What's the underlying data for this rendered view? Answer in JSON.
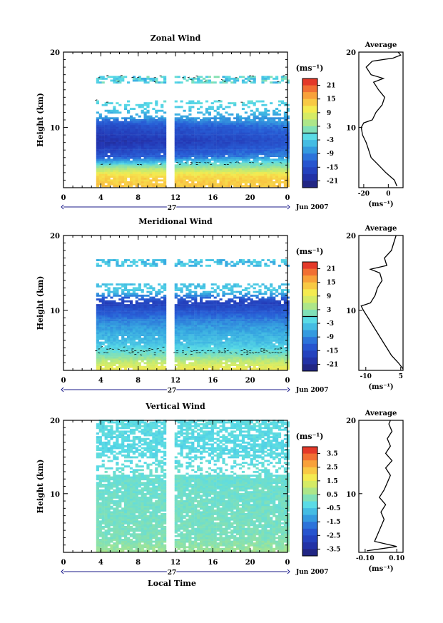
{
  "figure": {
    "date_label": "Jun 2007",
    "day_label": "27",
    "bottom_xlabel": "Local Time",
    "colorbar_unit": "(ms⁻¹)",
    "avg_unit": "(ms⁻¹)"
  },
  "chart_data": [
    {
      "type": "heatmap",
      "title": "Zonal Wind",
      "ylabel": "Height (km)",
      "x_ticks": [
        "0",
        "4",
        "8",
        "12",
        "16",
        "20",
        "0"
      ],
      "xlim": [
        0,
        24
      ],
      "y_ticks": [
        "10",
        "20"
      ],
      "ylim": [
        2,
        20
      ],
      "colorbar": {
        "ticks": [
          "21",
          "15",
          "9",
          "3",
          "-3",
          "-9",
          "-15",
          "-21"
        ],
        "values": [
          21,
          15,
          9,
          3,
          -3,
          -9,
          -15,
          -21
        ],
        "range": [
          -24,
          24
        ],
        "contour_at": 0
      },
      "data_time_range": [
        3.5,
        24
      ],
      "gap_hours": [
        11.0,
        11.7
      ],
      "height_profile": [
        {
          "h": 2,
          "v": 14
        },
        {
          "h": 3.5,
          "v": 12
        },
        {
          "h": 5,
          "v": 0
        },
        {
          "h": 6,
          "v": -11
        },
        {
          "h": 8,
          "v": -17
        },
        {
          "h": 10,
          "v": -13
        },
        {
          "h": 11,
          "v": -8
        },
        {
          "h": 12.5,
          "v": -3
        },
        {
          "h": 13.5,
          "v": -1
        },
        {
          "h": 17,
          "v": -6
        }
      ],
      "average": {
        "title": "Average",
        "x_ticks": [
          "-20",
          "0"
        ],
        "x_tick_values": [
          -20,
          0
        ],
        "xlim": [
          -24,
          12
        ],
        "ylim": [
          2,
          20
        ],
        "y_ticks": [
          "10",
          "20"
        ],
        "profile": [
          {
            "h": 2.2,
            "v": 7
          },
          {
            "h": 3,
            "v": 5
          },
          {
            "h": 4,
            "v": -2
          },
          {
            "h": 5,
            "v": -8
          },
          {
            "h": 6,
            "v": -14
          },
          {
            "h": 7,
            "v": -16
          },
          {
            "h": 8,
            "v": -18
          },
          {
            "h": 9,
            "v": -21
          },
          {
            "h": 10,
            "v": -22
          },
          {
            "h": 10.6,
            "v": -20
          },
          {
            "h": 11,
            "v": -13
          },
          {
            "h": 12,
            "v": -10
          },
          {
            "h": 13,
            "v": -5
          },
          {
            "h": 14,
            "v": -3
          },
          {
            "h": 15,
            "v": -8
          },
          {
            "h": 16,
            "v": -12
          },
          {
            "h": 16.5,
            "v": -4
          },
          {
            "h": 17,
            "v": -14
          },
          {
            "h": 18,
            "v": -18
          },
          {
            "h": 18.8,
            "v": -13
          },
          {
            "h": 19.2,
            "v": 4
          },
          {
            "h": 19.6,
            "v": 10
          },
          {
            "h": 20,
            "v": 8
          }
        ]
      }
    },
    {
      "type": "heatmap",
      "title": "Meridional Wind",
      "ylabel": "Height (km)",
      "x_ticks": [
        "0",
        "4",
        "8",
        "12",
        "16",
        "20",
        "0"
      ],
      "xlim": [
        0,
        24
      ],
      "y_ticks": [
        "10",
        "20"
      ],
      "ylim": [
        2,
        20
      ],
      "colorbar": {
        "ticks": [
          "21",
          "15",
          "9",
          "3",
          "-3",
          "-9",
          "-15",
          "-21"
        ],
        "values": [
          21,
          15,
          9,
          3,
          -3,
          -9,
          -15,
          -21
        ],
        "range": [
          -24,
          24
        ],
        "contour_at": 0
      },
      "data_time_range": [
        3.5,
        24
      ],
      "gap_hours": [
        11.0,
        11.7
      ],
      "height_profile": [
        {
          "h": 2,
          "v": 10
        },
        {
          "h": 3,
          "v": 6
        },
        {
          "h": 4,
          "v": 1
        },
        {
          "h": 5.5,
          "v": -4
        },
        {
          "h": 7,
          "v": -6
        },
        {
          "h": 8.5,
          "v": -9
        },
        {
          "h": 10,
          "v": -14
        },
        {
          "h": 11,
          "v": -17
        },
        {
          "h": 12.5,
          "v": -3
        },
        {
          "h": 16,
          "v": -7
        },
        {
          "h": 17,
          "v": -7
        }
      ],
      "average": {
        "title": "Average",
        "x_ticks": [
          "-10",
          "5"
        ],
        "x_tick_values": [
          -10,
          5
        ],
        "xlim": [
          -13,
          6
        ],
        "ylim": [
          2,
          20
        ],
        "y_ticks": [
          "10",
          "20"
        ],
        "profile": [
          {
            "h": 2.2,
            "v": 6
          },
          {
            "h": 3,
            "v": 4
          },
          {
            "h": 4,
            "v": 1
          },
          {
            "h": 5,
            "v": -1
          },
          {
            "h": 6,
            "v": -3
          },
          {
            "h": 7,
            "v": -5
          },
          {
            "h": 8,
            "v": -7
          },
          {
            "h": 9,
            "v": -9
          },
          {
            "h": 10,
            "v": -11
          },
          {
            "h": 10.6,
            "v": -12
          },
          {
            "h": 11,
            "v": -8
          },
          {
            "h": 12,
            "v": -6
          },
          {
            "h": 13,
            "v": -5
          },
          {
            "h": 14,
            "v": -3
          },
          {
            "h": 15,
            "v": -4
          },
          {
            "h": 15.5,
            "v": -8
          },
          {
            "h": 16,
            "v": -1
          },
          {
            "h": 17,
            "v": -2
          },
          {
            "h": 18,
            "v": 1
          },
          {
            "h": 19,
            "v": 2
          },
          {
            "h": 20,
            "v": 3
          }
        ]
      }
    },
    {
      "type": "heatmap",
      "title": "Vertical Wind",
      "ylabel": "Height (km)",
      "xlabel": "Local Time",
      "x_ticks": [
        "0",
        "4",
        "8",
        "12",
        "16",
        "20",
        "0"
      ],
      "xlim": [
        0,
        24
      ],
      "y_ticks": [
        "10",
        "20"
      ],
      "ylim": [
        2,
        20
      ],
      "colorbar": {
        "ticks": [
          "3.5",
          "2.5",
          "1.5",
          "0.5",
          "-0.5",
          "-1.5",
          "-2.5",
          "-3.5"
        ],
        "values": [
          3.5,
          2.5,
          1.5,
          0.5,
          -0.5,
          -1.5,
          -2.5,
          -3.5
        ],
        "range": [
          -4,
          4
        ],
        "contour_at": null
      },
      "data_time_range": [
        3.5,
        24
      ],
      "gap_hours": [
        11.0,
        11.7
      ],
      "height_profile": [
        {
          "h": 2,
          "v": 0.6
        },
        {
          "h": 4,
          "v": 0.2
        },
        {
          "h": 8,
          "v": 0.1
        },
        {
          "h": 12,
          "v": 0.0
        },
        {
          "h": 16,
          "v": -0.3
        },
        {
          "h": 20,
          "v": -0.2
        }
      ],
      "average": {
        "title": "Average",
        "x_ticks": [
          "-0.10",
          "0.10"
        ],
        "x_tick_values": [
          -0.1,
          0.1
        ],
        "xlim": [
          -0.14,
          0.14
        ],
        "ylim": [
          2,
          20
        ],
        "y_ticks": [
          "10",
          "20"
        ],
        "profile": [
          {
            "h": 2.2,
            "v": -0.09
          },
          {
            "h": 2.8,
            "v": 0.1
          },
          {
            "h": 3.5,
            "v": -0.04
          },
          {
            "h": 4.5,
            "v": -0.02
          },
          {
            "h": 5.5,
            "v": 0.0
          },
          {
            "h": 6.5,
            "v": 0.02
          },
          {
            "h": 7.5,
            "v": 0.0
          },
          {
            "h": 8.5,
            "v": 0.03
          },
          {
            "h": 9.5,
            "v": -0.01
          },
          {
            "h": 10.5,
            "v": 0.02
          },
          {
            "h": 11.5,
            "v": 0.04
          },
          {
            "h": 12.5,
            "v": 0.06
          },
          {
            "h": 13.5,
            "v": 0.03
          },
          {
            "h": 14.5,
            "v": 0.07
          },
          {
            "h": 15.5,
            "v": 0.03
          },
          {
            "h": 16.5,
            "v": 0.06
          },
          {
            "h": 17.5,
            "v": 0.04
          },
          {
            "h": 18.5,
            "v": 0.07
          },
          {
            "h": 19.5,
            "v": 0.05
          },
          {
            "h": 20,
            "v": 0.06
          }
        ]
      }
    }
  ]
}
